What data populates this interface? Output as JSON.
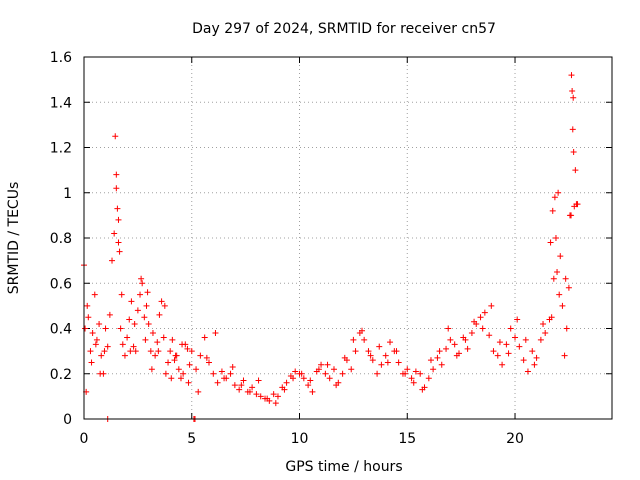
{
  "chart_data": {
    "type": "scatter",
    "title": "Day 297 of 2024, SRMTID for receiver cn57",
    "xlabel": "GPS time / hours",
    "ylabel": "SRMTID / TECUs",
    "xlim": [
      0,
      24.5
    ],
    "ylim": [
      0,
      1.6
    ],
    "x_ticks": [
      0,
      5,
      10,
      15,
      20
    ],
    "x_tick_labels": [
      "0",
      "5",
      "10",
      "15",
      "20"
    ],
    "y_ticks": [
      0,
      0.2,
      0.4,
      0.6,
      0.8,
      1.0,
      1.2,
      1.4,
      1.6
    ],
    "y_tick_labels": [
      "0",
      "0.2",
      "0.4",
      "0.6",
      "0.8",
      "1",
      "1.2",
      "1.4",
      "1.6"
    ],
    "grid": true,
    "marker": "plus",
    "color": "#ff0000",
    "series": [
      {
        "name": "SRMTID",
        "x": [
          0.0,
          0.1,
          0.2,
          0.3,
          0.4,
          0.5,
          0.6,
          0.7,
          0.8,
          0.9,
          1.0,
          1.1,
          1.2,
          1.3,
          1.4,
          1.5,
          1.6,
          1.7,
          1.8,
          1.9,
          2.0,
          2.1,
          2.2,
          2.3,
          2.4,
          2.5,
          2.6,
          2.7,
          2.8,
          2.9,
          3.0,
          3.1,
          3.2,
          3.3,
          3.4,
          3.5,
          3.6,
          3.7,
          3.8,
          3.9,
          4.0,
          4.1,
          4.2,
          4.3,
          4.4,
          4.5,
          4.6,
          4.7,
          4.8,
          4.9,
          5.0,
          5.2,
          5.4,
          5.6,
          5.8,
          6.0,
          6.2,
          6.4,
          6.6,
          6.8,
          7.0,
          7.2,
          7.4,
          7.6,
          7.8,
          8.0,
          8.2,
          8.4,
          8.6,
          8.8,
          9.0,
          9.2,
          9.4,
          9.6,
          9.8,
          10.0,
          10.2,
          10.4,
          10.6,
          10.8,
          11.0,
          11.2,
          11.4,
          11.6,
          11.8,
          12.0,
          12.2,
          12.4,
          12.6,
          12.8,
          13.0,
          13.2,
          13.4,
          13.6,
          13.8,
          14.0,
          14.2,
          14.4,
          14.6,
          14.8,
          15.0,
          15.2,
          15.4,
          15.6,
          15.8,
          16.0,
          16.2,
          16.4,
          16.6,
          16.8,
          17.0,
          17.2,
          17.4,
          17.6,
          17.8,
          18.0,
          18.2,
          18.4,
          18.6,
          18.8,
          19.0,
          19.2,
          19.4,
          19.6,
          19.8,
          20.0,
          20.2,
          20.4,
          20.6,
          20.8,
          21.0,
          21.2,
          21.4,
          21.6,
          21.7,
          21.8,
          21.9,
          22.0,
          22.1,
          22.2,
          22.3,
          22.4,
          22.5,
          22.6,
          22.7,
          22.8,
          22.9,
          0.05,
          0.15,
          0.35,
          0.55,
          0.75,
          0.95,
          1.45,
          1.5,
          1.55,
          1.6,
          1.65,
          1.75,
          2.15,
          2.35,
          2.65,
          2.85,
          2.95,
          3.15,
          3.45,
          3.75,
          4.05,
          4.25,
          4.55,
          4.85,
          5.3,
          5.7,
          6.1,
          6.5,
          6.9,
          7.3,
          7.7,
          8.1,
          8.5,
          8.9,
          9.3,
          9.7,
          10.1,
          10.5,
          10.9,
          11.3,
          11.7,
          12.1,
          12.5,
          12.9,
          13.3,
          13.7,
          14.1,
          14.5,
          14.9,
          15.3,
          15.7,
          16.1,
          16.5,
          16.9,
          17.3,
          17.7,
          18.1,
          18.5,
          18.9,
          19.3,
          19.7,
          20.1,
          20.5,
          20.9,
          21.3,
          21.65,
          21.75,
          21.85,
          21.95,
          22.05,
          22.35,
          22.55,
          22.62,
          22.65,
          22.68,
          22.72,
          22.75,
          22.85,
          1.1,
          5.1,
          5.15
        ],
        "y": [
          0.68,
          0.12,
          0.45,
          0.3,
          0.38,
          0.55,
          0.35,
          0.42,
          0.28,
          0.2,
          0.4,
          0.32,
          0.46,
          0.7,
          0.82,
          1.02,
          0.78,
          0.4,
          0.33,
          0.28,
          0.36,
          0.44,
          0.52,
          0.32,
          0.3,
          0.48,
          0.55,
          0.6,
          0.45,
          0.5,
          0.42,
          0.3,
          0.38,
          0.28,
          0.34,
          0.46,
          0.52,
          0.36,
          0.2,
          0.25,
          0.3,
          0.35,
          0.26,
          0.28,
          0.22,
          0.18,
          0.2,
          0.33,
          0.31,
          0.24,
          0.3,
          0.22,
          0.28,
          0.36,
          0.25,
          0.2,
          0.16,
          0.21,
          0.18,
          0.2,
          0.15,
          0.13,
          0.17,
          0.12,
          0.14,
          0.11,
          0.1,
          0.09,
          0.08,
          0.11,
          0.1,
          0.14,
          0.16,
          0.19,
          0.21,
          0.2,
          0.18,
          0.15,
          0.12,
          0.21,
          0.24,
          0.2,
          0.18,
          0.22,
          0.16,
          0.2,
          0.26,
          0.22,
          0.3,
          0.38,
          0.35,
          0.3,
          0.26,
          0.2,
          0.24,
          0.28,
          0.34,
          0.3,
          0.25,
          0.2,
          0.22,
          0.18,
          0.21,
          0.2,
          0.14,
          0.18,
          0.22,
          0.27,
          0.24,
          0.31,
          0.35,
          0.33,
          0.29,
          0.36,
          0.31,
          0.38,
          0.42,
          0.45,
          0.47,
          0.37,
          0.3,
          0.28,
          0.24,
          0.33,
          0.4,
          0.36,
          0.32,
          0.26,
          0.21,
          0.3,
          0.27,
          0.35,
          0.38,
          0.44,
          0.45,
          0.62,
          0.8,
          1.0,
          0.72,
          0.5,
          0.28,
          0.4,
          0.58,
          0.9,
          1.42,
          1.1,
          0.95,
          0.4,
          0.5,
          0.25,
          0.33,
          0.2,
          0.3,
          1.25,
          1.08,
          0.93,
          0.88,
          0.74,
          0.55,
          0.3,
          0.42,
          0.62,
          0.35,
          0.56,
          0.22,
          0.3,
          0.5,
          0.18,
          0.28,
          0.33,
          0.16,
          0.12,
          0.27,
          0.38,
          0.18,
          0.23,
          0.15,
          0.12,
          0.17,
          0.09,
          0.07,
          0.13,
          0.18,
          0.2,
          0.17,
          0.22,
          0.24,
          0.15,
          0.27,
          0.35,
          0.39,
          0.28,
          0.32,
          0.25,
          0.3,
          0.2,
          0.16,
          0.13,
          0.26,
          0.3,
          0.4,
          0.28,
          0.35,
          0.43,
          0.4,
          0.5,
          0.34,
          0.29,
          0.44,
          0.35,
          0.24,
          0.42,
          0.78,
          0.92,
          0.98,
          0.65,
          0.55,
          0.62,
          0.9,
          1.52,
          1.45,
          1.28,
          1.18,
          0.94,
          0.95,
          0.0,
          0.0,
          0.0
        ]
      }
    ]
  }
}
